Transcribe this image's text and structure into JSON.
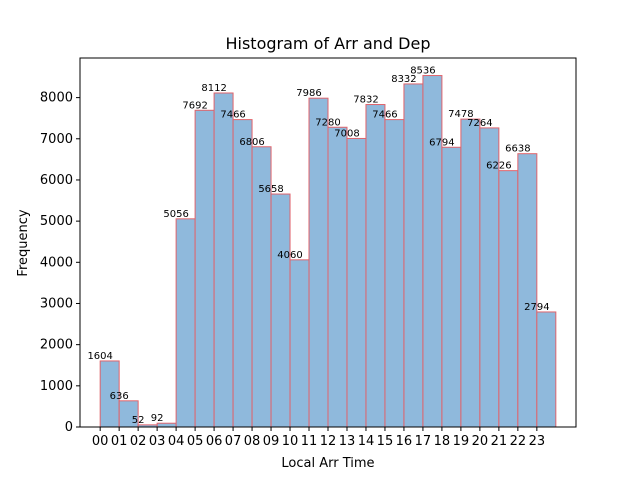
{
  "chart_data": {
    "type": "bar",
    "title": "Histogram of Arr and Dep",
    "xlabel": "Local Arr Time",
    "ylabel": "Frequency",
    "categories": [
      "00",
      "01",
      "02",
      "03",
      "04",
      "05",
      "06",
      "07",
      "08",
      "09",
      "10",
      "11",
      "12",
      "13",
      "14",
      "15",
      "16",
      "17",
      "18",
      "19",
      "20",
      "21",
      "22",
      "23"
    ],
    "values": [
      1604,
      636,
      52,
      92,
      5056,
      7692,
      8112,
      7466,
      6806,
      5658,
      4060,
      7986,
      7280,
      7008,
      7832,
      7466,
      8332,
      8536,
      6794,
      7478,
      7264,
      6226,
      6638,
      2794
    ],
    "ylim": [
      0,
      8962
    ],
    "yticks": [
      0,
      1000,
      2000,
      3000,
      4000,
      5000,
      6000,
      7000,
      8000
    ],
    "grid": false,
    "bar_fill": "#8fb9dc",
    "bar_edge": "#e0636b"
  }
}
